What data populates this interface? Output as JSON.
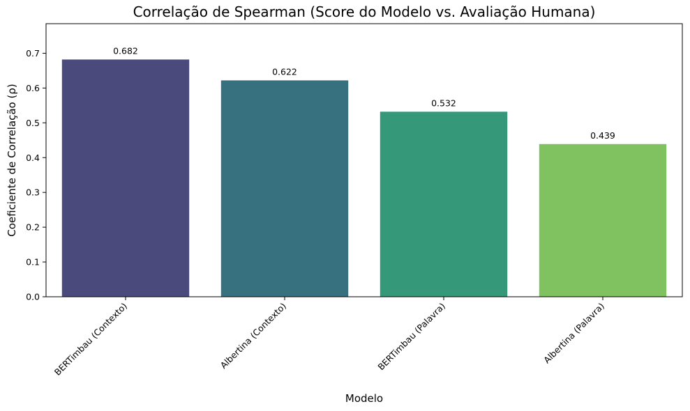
{
  "chart_data": {
    "type": "bar",
    "title": "Correlação de Spearman (Score do Modelo vs. Avaliação Humana)",
    "xlabel": "Modelo",
    "ylabel": "Coeficiente de Correlação (ρ)",
    "categories": [
      "BERTimbau (Contexto)",
      "Albertina (Contexto)",
      "BERTimbau (Palavra)",
      "Albertina (Palavra)"
    ],
    "values": [
      0.682,
      0.622,
      0.532,
      0.439
    ],
    "data_labels": [
      "0.682",
      "0.622",
      "0.532",
      "0.439"
    ],
    "colors": [
      "#4a4b7c",
      "#37717f",
      "#359878",
      "#80c160"
    ],
    "ylim": [
      0,
      0.785
    ],
    "yticks": [
      0.0,
      0.1,
      0.2,
      0.3,
      0.4,
      0.5,
      0.6,
      0.7
    ],
    "ytick_labels": [
      "0.0",
      "0.1",
      "0.2",
      "0.3",
      "0.4",
      "0.5",
      "0.6",
      "0.7"
    ],
    "grid": false,
    "legend": "none"
  }
}
